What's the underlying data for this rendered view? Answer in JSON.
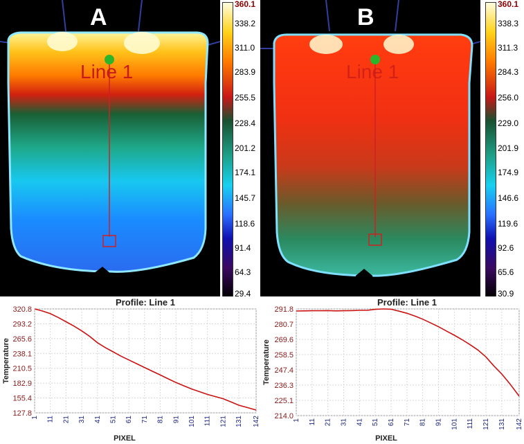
{
  "panels": [
    {
      "letter": "A",
      "line_label": "Line 1"
    },
    {
      "letter": "B",
      "line_label": "Line 1"
    }
  ],
  "colorbars": [
    {
      "max": "360.1",
      "ticks": [
        "338.2",
        "311.0",
        "283.9",
        "255.5",
        "228.4",
        "201.2",
        "174.1",
        "145.7",
        "118.6",
        "91.4",
        "64.3",
        "29.4"
      ]
    },
    {
      "max": "360.1",
      "ticks": [
        "338.3",
        "311.3",
        "284.3",
        "256.0",
        "229.0",
        "201.9",
        "174.9",
        "146.6",
        "119.6",
        "92.6",
        "65.6",
        "30.9"
      ]
    }
  ],
  "colors": {
    "profile_line": "#cc1111",
    "marker": "#2bb52b",
    "roi_line": "#cc2222"
  },
  "chart_data": [
    {
      "type": "line",
      "title": "Profile: Line 1",
      "xlabel": "PIXEL",
      "ylabel": "Temperature",
      "ylim": [
        127.8,
        320.8
      ],
      "xlim": [
        1,
        142
      ],
      "yticks": [
        "320.8",
        "293.2",
        "265.6",
        "238.1",
        "210.5",
        "182.9",
        "155.4",
        "127.8"
      ],
      "xticks": [
        "1",
        "11",
        "21",
        "31",
        "41",
        "51",
        "61",
        "71",
        "81",
        "91",
        "101",
        "111",
        "121",
        "131",
        "142"
      ],
      "series": [
        {
          "x": [
            1,
            6,
            11,
            16,
            21,
            26,
            31,
            36,
            41,
            46,
            51,
            56,
            61,
            66,
            71,
            76,
            81,
            86,
            91,
            96,
            101,
            106,
            111,
            116,
            121,
            126,
            131,
            136,
            142
          ],
          "values": [
            320.8,
            317,
            312,
            305,
            297,
            289,
            280,
            270,
            258,
            249,
            241,
            233,
            226,
            219,
            212,
            205,
            198,
            191,
            184,
            178,
            172,
            167,
            162,
            158,
            154,
            148,
            142,
            138,
            133
          ]
        }
      ]
    },
    {
      "type": "line",
      "title": "Profile: Line 1",
      "xlabel": "PIXEL",
      "ylabel": "Temperature",
      "ylim": [
        214.0,
        291.8
      ],
      "xlim": [
        1,
        142
      ],
      "yticks": [
        "291.8",
        "280.7",
        "269.6",
        "258.5",
        "247.4",
        "236.3",
        "225.1",
        "214.0"
      ],
      "xticks": [
        "1",
        "11",
        "21",
        "31",
        "41",
        "51",
        "61",
        "71",
        "81",
        "91",
        "101",
        "111",
        "121",
        "131",
        "142"
      ],
      "series": [
        {
          "x": [
            1,
            6,
            11,
            16,
            21,
            26,
            31,
            36,
            41,
            46,
            51,
            56,
            61,
            66,
            71,
            76,
            81,
            86,
            91,
            96,
            101,
            106,
            111,
            116,
            121,
            126,
            131,
            136,
            142
          ],
          "values": [
            290.3,
            290.4,
            290.5,
            290.5,
            290.6,
            290.4,
            290.5,
            290.6,
            290.8,
            290.8,
            291.5,
            291.8,
            291.6,
            290.2,
            288.6,
            286.6,
            284.3,
            281.6,
            278.8,
            275.7,
            272.6,
            269.3,
            265.7,
            261.8,
            256.8,
            250.2,
            244.3,
            237.4,
            228.2
          ]
        }
      ]
    }
  ]
}
